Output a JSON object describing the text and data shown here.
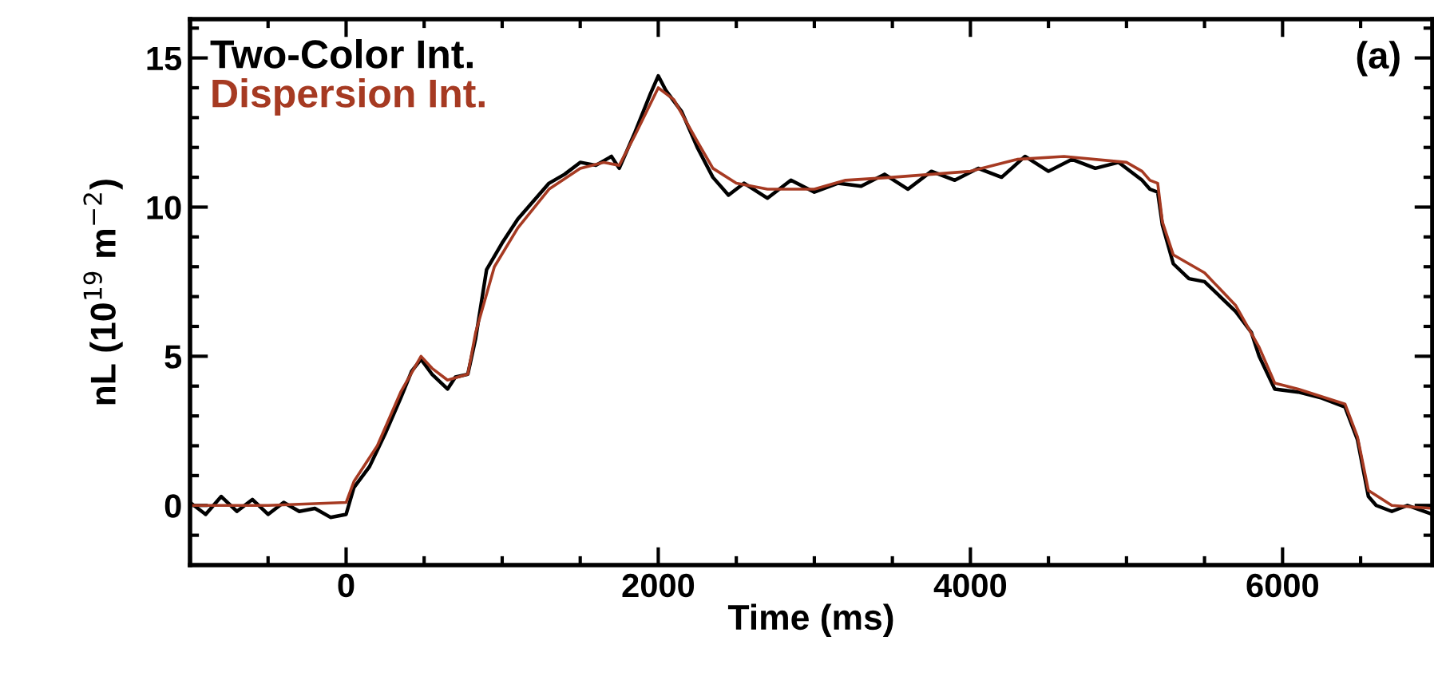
{
  "chart_data": {
    "type": "line",
    "xlabel": "Time (ms)",
    "ylabel": "nL (10$^{19}$ m$^{−2}$)",
    "xlim": [
      -1000,
      6960
    ],
    "ylim": [
      -2,
      16.3
    ],
    "xticks": [
      0,
      2000,
      4000,
      6000
    ],
    "yticks": [
      0,
      5,
      10,
      15
    ],
    "legend": "top left",
    "annotations": [
      "(a)"
    ],
    "line_style": "solid",
    "marker": "none",
    "series": [
      {
        "name": "Two-Color Int.",
        "color": "#000000",
        "x": [
          -1000,
          -900,
          -800,
          -700,
          -600,
          -500,
          -400,
          -300,
          -200,
          -100,
          0,
          50,
          150,
          250,
          350,
          420,
          480,
          550,
          650,
          700,
          780,
          830,
          900,
          1000,
          1100,
          1200,
          1300,
          1400,
          1500,
          1600,
          1700,
          1750,
          1850,
          1950,
          2000,
          2050,
          2150,
          2250,
          2350,
          2450,
          2550,
          2700,
          2850,
          3000,
          3150,
          3300,
          3450,
          3600,
          3750,
          3900,
          4050,
          4200,
          4350,
          4500,
          4650,
          4800,
          4950,
          5100,
          5150,
          5200,
          5230,
          5300,
          5400,
          5500,
          5600,
          5700,
          5800,
          5850,
          5950,
          6100,
          6250,
          6400,
          6480,
          6550,
          6600,
          6700,
          6800,
          6960
        ],
        "values": [
          0.1,
          -0.3,
          0.3,
          -0.2,
          0.2,
          -0.3,
          0.1,
          -0.2,
          -0.1,
          -0.4,
          -0.3,
          0.6,
          1.3,
          2.4,
          3.6,
          4.5,
          4.9,
          4.4,
          3.9,
          4.3,
          4.4,
          5.6,
          7.9,
          8.8,
          9.6,
          10.2,
          10.8,
          11.1,
          11.5,
          11.4,
          11.7,
          11.3,
          12.5,
          13.8,
          14.4,
          13.9,
          13.2,
          12.0,
          11.0,
          10.4,
          10.8,
          10.3,
          10.9,
          10.5,
          10.8,
          10.7,
          11.1,
          10.6,
          11.2,
          10.9,
          11.3,
          11.0,
          11.7,
          11.2,
          11.6,
          11.3,
          11.5,
          10.9,
          10.6,
          10.5,
          9.4,
          8.1,
          7.6,
          7.5,
          7.0,
          6.5,
          5.8,
          5.0,
          3.9,
          3.8,
          3.6,
          3.3,
          2.2,
          0.3,
          0.0,
          -0.2,
          0.0,
          -0.3
        ]
      },
      {
        "name": "Dispersion Int.",
        "color": "#a63a22",
        "x": [
          -1000,
          -500,
          0,
          50,
          200,
          350,
          480,
          550,
          650,
          780,
          830,
          950,
          1100,
          1300,
          1500,
          1650,
          1750,
          1850,
          2000,
          2100,
          2250,
          2350,
          2500,
          2700,
          3000,
          3200,
          3500,
          4000,
          4300,
          4600,
          5000,
          5100,
          5150,
          5200,
          5230,
          5300,
          5500,
          5700,
          5850,
          5950,
          6100,
          6400,
          6480,
          6550,
          6700,
          6960
        ],
        "values": [
          0.0,
          0.0,
          0.1,
          0.8,
          2.0,
          3.8,
          5.0,
          4.6,
          4.2,
          4.4,
          5.8,
          8.0,
          9.3,
          10.6,
          11.3,
          11.5,
          11.4,
          12.4,
          14.0,
          13.6,
          12.2,
          11.3,
          10.8,
          10.6,
          10.6,
          10.9,
          11.0,
          11.2,
          11.6,
          11.7,
          11.5,
          11.2,
          10.9,
          10.8,
          9.5,
          8.4,
          7.8,
          6.7,
          5.3,
          4.1,
          3.9,
          3.4,
          2.3,
          0.5,
          0.0,
          -0.1
        ]
      }
    ]
  }
}
